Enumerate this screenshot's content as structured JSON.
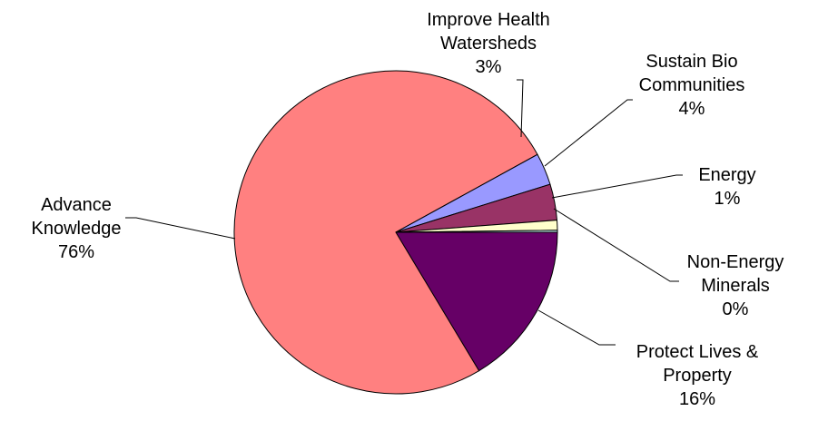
{
  "chart_data": {
    "type": "pie",
    "title": "",
    "slices": [
      {
        "label_lines": [
          "Protect Lives &",
          "Property"
        ],
        "percent_label": "16%",
        "value": 16.4,
        "color": "#660066"
      },
      {
        "label_lines": [
          "Advance",
          "Knowledge"
        ],
        "percent_label": "76%",
        "value": 75.6,
        "color": "#ff8080"
      },
      {
        "label_lines": [
          "Improve Health",
          "Watersheds"
        ],
        "percent_label": "3%",
        "value": 3.2,
        "color": "#9999ff"
      },
      {
        "label_lines": [
          "Sustain Bio",
          "Communities"
        ],
        "percent_label": "4%",
        "value": 3.6,
        "color": "#993366"
      },
      {
        "label_lines": [
          "Energy"
        ],
        "percent_label": "1%",
        "value": 1.0,
        "color": "#ffffcc"
      },
      {
        "label_lines": [
          "Non-Energy",
          "Minerals"
        ],
        "percent_label": "0%",
        "value": 0.2,
        "color": "#ccffff"
      }
    ]
  }
}
